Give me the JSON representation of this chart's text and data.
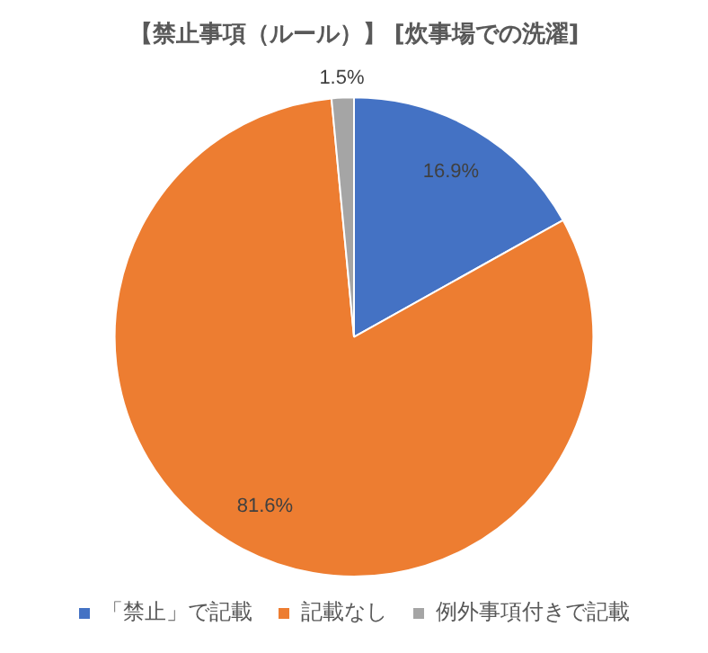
{
  "chart_data": {
    "type": "pie",
    "title": "【禁止事項（ルール）】 [炊事場での洗濯]",
    "categories": [
      "「禁止」で記載",
      "記載なし",
      "例外事項付きで記載"
    ],
    "values": [
      16.9,
      81.6,
      1.5
    ],
    "colors": [
      "#4472c4",
      "#ed7d31",
      "#a5a5a5"
    ],
    "value_labels": [
      "16.9%",
      "81.6%",
      "1.5%"
    ],
    "legend": "bottom"
  }
}
